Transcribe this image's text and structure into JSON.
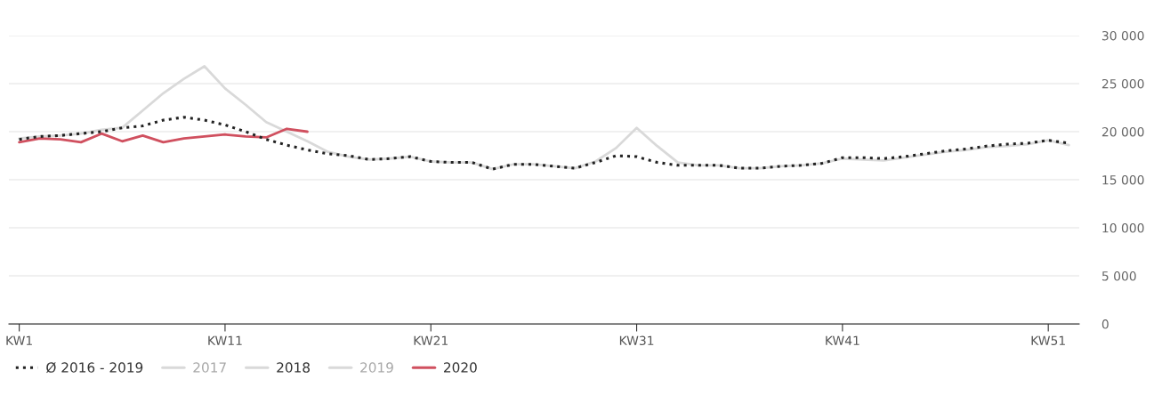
{
  "chart_data": {
    "type": "line",
    "categories": [
      "KW1",
      null,
      null,
      null,
      null,
      null,
      null,
      null,
      null,
      null,
      "KW11",
      null,
      null,
      null,
      null,
      null,
      null,
      null,
      null,
      null,
      "KW21",
      null,
      null,
      null,
      null,
      null,
      null,
      null,
      null,
      null,
      "KW31",
      null,
      null,
      null,
      null,
      null,
      null,
      null,
      null,
      null,
      "KW41",
      null,
      null,
      null,
      null,
      null,
      null,
      null,
      null,
      null,
      "KW51",
      null
    ],
    "series": [
      {
        "name": "Ø 2016 - 2019",
        "color": "#222222",
        "line_style": "dotted",
        "values": [
          19200,
          19500,
          19600,
          19800,
          20000,
          20400,
          20600,
          21200,
          21500,
          21200,
          20700,
          20000,
          19200,
          18600,
          18100,
          17700,
          17500,
          17100,
          17200,
          17400,
          16900,
          16800,
          16800,
          16100,
          16600,
          16600,
          16400,
          16200,
          16800,
          17500,
          17400,
          16800,
          16500,
          16500,
          16500,
          16200,
          16200,
          16400,
          16500,
          16700,
          17300,
          17300,
          17200,
          17400,
          17700,
          18000,
          18200,
          18500,
          18700,
          18800,
          19100,
          18800
        ]
      },
      {
        "name": "2017",
        "color": "#d9d9d9",
        "values": [
          null,
          null,
          null,
          null,
          null,
          null,
          null,
          null,
          null,
          null,
          null,
          null,
          null,
          null,
          null,
          null,
          null,
          null,
          null,
          null,
          null,
          null,
          null,
          null,
          null,
          null,
          null,
          null,
          null,
          null,
          null,
          null,
          null,
          null,
          null,
          null,
          null,
          null,
          null,
          null,
          null,
          null,
          null,
          null,
          null,
          null,
          null,
          null,
          null,
          null,
          null,
          null
        ]
      },
      {
        "name": "2018",
        "color": "#d9d9d9",
        "values": [
          19300,
          19500,
          19600,
          19800,
          20200,
          20400,
          22200,
          24000,
          25500,
          26800,
          24500,
          22800,
          21000,
          20000,
          19000,
          17900,
          17400,
          17100,
          17200,
          17400,
          16900,
          16800,
          16800,
          16100,
          16600,
          16600,
          16400,
          16200,
          16900,
          18300,
          20400,
          18500,
          16800,
          16500,
          16500,
          16200,
          16200,
          16400,
          16500,
          16700,
          17200,
          17100,
          17000,
          17300,
          17600,
          17900,
          18100,
          18400,
          18500,
          18700,
          19100,
          18600
        ]
      },
      {
        "name": "2019",
        "color": "#d9d9d9",
        "values": [
          null,
          null,
          null,
          null,
          null,
          null,
          null,
          null,
          null,
          null,
          null,
          null,
          null,
          null,
          null,
          null,
          null,
          null,
          null,
          null,
          null,
          null,
          null,
          null,
          null,
          null,
          null,
          null,
          null,
          null,
          null,
          null,
          null,
          null,
          null,
          null,
          null,
          null,
          null,
          null,
          null,
          null,
          null,
          null,
          null,
          null,
          null,
          null,
          null,
          null,
          null,
          null
        ]
      },
      {
        "name": "2020",
        "color": "#d0505f",
        "values": [
          18900,
          19300,
          19200,
          18900,
          19800,
          19000,
          19600,
          18900,
          19300,
          19500,
          19700,
          19500,
          19400,
          20300,
          20000,
          null,
          null,
          null,
          null,
          null,
          null,
          null,
          null,
          null,
          null,
          null,
          null,
          null,
          null,
          null,
          null,
          null,
          null,
          null,
          null,
          null,
          null,
          null,
          null,
          null,
          null,
          null,
          null,
          null,
          null,
          null,
          null,
          null,
          null,
          null,
          null,
          null
        ]
      }
    ],
    "ylim": [
      0,
      30000
    ],
    "yticks": [
      0,
      {
        "value": 5000,
        "label": "5 000"
      },
      {
        "value": 10000,
        "label": "10 000"
      },
      {
        "value": 15000,
        "label": "15 000"
      },
      {
        "value": 20000,
        "label": "20 000"
      },
      {
        "value": 25000,
        "label": "25 000"
      },
      {
        "value": 30000,
        "label": "30 000"
      }
    ],
    "grid": "y",
    "legend": "bottom left"
  }
}
